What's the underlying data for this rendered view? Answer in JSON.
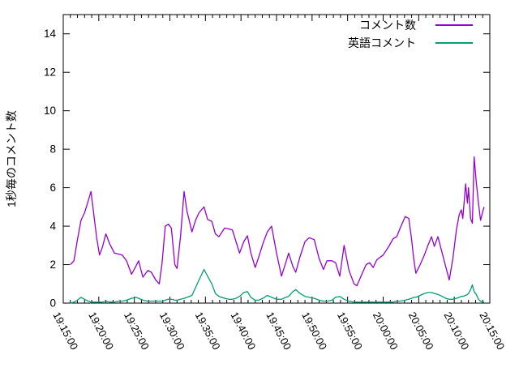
{
  "figure": {
    "background": "#ffffff",
    "frame_color": "#000000",
    "text_color": "#000000"
  },
  "chart_data": {
    "type": "line",
    "title": "",
    "xlabel": "",
    "ylabel": "1秒毎のコメント数",
    "ylim": [
      0,
      15
    ],
    "yticks": [
      0,
      2,
      4,
      6,
      8,
      10,
      12,
      14
    ],
    "grid": false,
    "legend_position": "top-right-inside",
    "xticks": [
      "19:15:00",
      "19:20:00",
      "19:25:00",
      "19:30:00",
      "19:35:00",
      "19:40:00",
      "19:45:00",
      "19:50:00",
      "19:55:00",
      "20:00:00",
      "20:05:00",
      "20:10:00",
      "20:15:00"
    ],
    "xtick_interval_seconds": 300,
    "xtick_minor_seconds": 60,
    "x_unit": "seconds_after_19:15:00",
    "x_seconds": [
      60,
      90,
      120,
      150,
      180,
      210,
      234,
      258,
      282,
      306,
      330,
      360,
      390,
      432,
      468,
      498,
      534,
      576,
      612,
      636,
      672,
      714,
      744,
      780,
      810,
      834,
      861,
      888,
      912,
      942,
      960,
      990,
      1020,
      1044,
      1086,
      1116,
      1146,
      1188,
      1218,
      1254,
      1284,
      1314,
      1362,
      1398,
      1428,
      1458,
      1488,
      1524,
      1554,
      1584,
      1620,
      1650,
      1686,
      1722,
      1758,
      1800,
      1842,
      1878,
      1902,
      1938,
      1962,
      1998,
      2040,
      2076,
      2118,
      2160,
      2196,
      2226,
      2268,
      2298,
      2334,
      2370,
      2412,
      2454,
      2478,
      2520,
      2556,
      2586,
      2616,
      2646,
      2700,
      2748,
      2784,
      2814,
      2844,
      2886,
      2916,
      2940,
      2958,
      2976,
      3012,
      3048,
      3078,
      3108,
      3132,
      3162,
      3198,
      3228,
      3258,
      3288,
      3318,
      3342,
      3360,
      3372,
      3396,
      3411,
      3420,
      3438,
      3453,
      3468,
      3486,
      3504,
      3522,
      3540,
      3552
    ],
    "series": [
      {
        "name": "コメント数",
        "color": "#9400d3",
        "values": [
          2.0,
          2.2,
          3.3,
          4.3,
          4.7,
          5.3,
          5.8,
          4.6,
          3.4,
          2.5,
          2.9,
          3.6,
          3.1,
          2.6,
          2.55,
          2.5,
          2.2,
          1.5,
          1.9,
          2.2,
          1.35,
          1.7,
          1.6,
          1.2,
          1.0,
          2.1,
          4.0,
          4.1,
          3.9,
          2.0,
          1.8,
          3.5,
          5.8,
          4.8,
          3.7,
          4.3,
          4.7,
          5.0,
          4.35,
          4.25,
          3.6,
          3.45,
          3.9,
          3.85,
          3.8,
          3.2,
          2.6,
          3.2,
          3.5,
          2.6,
          1.85,
          2.4,
          3.1,
          3.7,
          4.0,
          2.6,
          1.4,
          2.1,
          2.6,
          1.9,
          1.6,
          2.4,
          3.2,
          3.4,
          3.3,
          2.3,
          1.75,
          2.2,
          2.2,
          2.1,
          1.4,
          3.0,
          1.7,
          1.0,
          0.9,
          1.5,
          2.0,
          2.1,
          1.85,
          2.25,
          2.5,
          2.95,
          3.35,
          3.45,
          3.9,
          4.5,
          4.4,
          3.3,
          2.3,
          1.55,
          2.0,
          2.5,
          3.0,
          3.45,
          2.95,
          3.45,
          2.6,
          1.9,
          1.2,
          2.3,
          3.8,
          4.6,
          4.85,
          4.4,
          6.2,
          5.2,
          6.0,
          4.4,
          4.15,
          7.6,
          6.3,
          5.2,
          4.3,
          4.75,
          5.0
        ]
      },
      {
        "name": "英語コメント",
        "color": "#009e73",
        "values": [
          0.0,
          0.05,
          0.15,
          0.3,
          0.2,
          0.1,
          0.05,
          0.05,
          0.05,
          0.05,
          0.05,
          0.1,
          0.05,
          0.05,
          0.1,
          0.1,
          0.15,
          0.25,
          0.3,
          0.25,
          0.15,
          0.1,
          0.1,
          0.1,
          0.1,
          0.1,
          0.15,
          0.2,
          0.2,
          0.15,
          0.15,
          0.2,
          0.25,
          0.3,
          0.4,
          0.8,
          1.2,
          1.75,
          1.4,
          1.0,
          0.5,
          0.35,
          0.25,
          0.2,
          0.2,
          0.25,
          0.35,
          0.55,
          0.6,
          0.3,
          0.15,
          0.15,
          0.25,
          0.4,
          0.3,
          0.2,
          0.2,
          0.3,
          0.35,
          0.6,
          0.7,
          0.5,
          0.35,
          0.3,
          0.25,
          0.15,
          0.1,
          0.1,
          0.15,
          0.3,
          0.35,
          0.2,
          0.1,
          0.05,
          0.05,
          0.05,
          0.05,
          0.05,
          0.05,
          0.05,
          0.05,
          0.05,
          0.05,
          0.1,
          0.1,
          0.15,
          0.2,
          0.25,
          0.3,
          0.3,
          0.4,
          0.5,
          0.55,
          0.55,
          0.5,
          0.45,
          0.35,
          0.25,
          0.2,
          0.2,
          0.25,
          0.3,
          0.35,
          0.35,
          0.4,
          0.45,
          0.5,
          0.7,
          0.95,
          0.6,
          0.45,
          0.2,
          0.1,
          0.05,
          0.05
        ]
      }
    ]
  }
}
